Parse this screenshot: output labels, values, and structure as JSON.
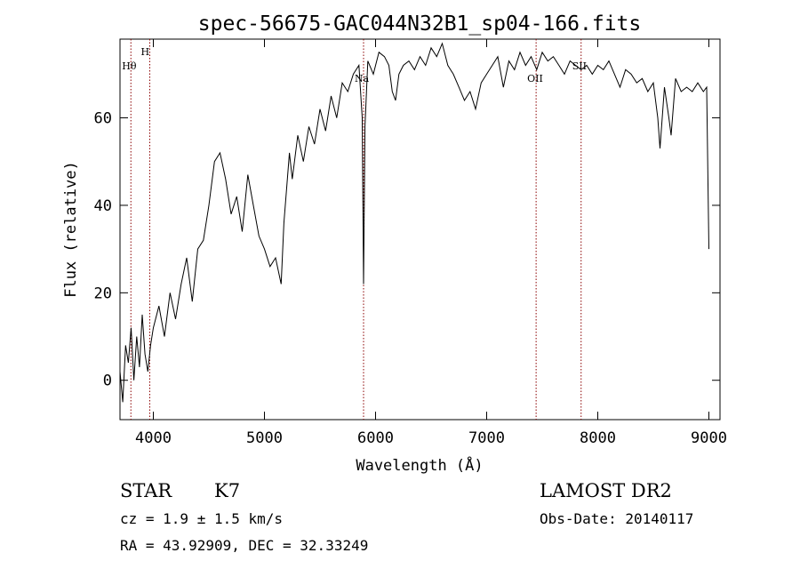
{
  "chart_data": {
    "type": "line",
    "title": "spec-56675-GAC044N32B1_sp04-166.fits",
    "xlabel": "Wavelength (Å)",
    "ylabel": "Flux (relative)",
    "xlim": [
      3700,
      9100
    ],
    "ylim": [
      -9,
      78
    ],
    "xticks": [
      4000,
      5000,
      6000,
      7000,
      8000,
      9000
    ],
    "yticks": [
      0,
      20,
      40,
      60
    ],
    "grid": false,
    "line_color": "#000000",
    "marker_color": "#8b0000",
    "lines": [
      {
        "label": "Hθ",
        "wavelength": 3798
      },
      {
        "label": "H",
        "wavelength": 3968
      },
      {
        "label": "Na",
        "wavelength": 5892
      },
      {
        "label": "OII",
        "wavelength": 7445
      },
      {
        "label": "SII",
        "wavelength": 7850
      }
    ],
    "series": [
      {
        "x": [
          3700,
          3725,
          3750,
          3775,
          3800,
          3825,
          3850,
          3875,
          3900,
          3925,
          3950,
          3975,
          4000,
          4050,
          4100,
          4150,
          4200,
          4250,
          4300,
          4350,
          4400,
          4450,
          4500,
          4550,
          4600,
          4650,
          4700,
          4750,
          4800,
          4850,
          4900,
          4950,
          5000,
          5050,
          5100,
          5150,
          5175,
          5200,
          5225,
          5250,
          5300,
          5350,
          5400,
          5450,
          5500,
          5550,
          5600,
          5650,
          5700,
          5750,
          5800,
          5850,
          5880,
          5892,
          5905,
          5930,
          5980,
          6030,
          6080,
          6120,
          6150,
          6180,
          6210,
          6250,
          6300,
          6350,
          6400,
          6450,
          6500,
          6550,
          6600,
          6650,
          6700,
          6750,
          6800,
          6850,
          6900,
          6950,
          7000,
          7050,
          7100,
          7150,
          7200,
          7250,
          7300,
          7350,
          7400,
          7450,
          7500,
          7550,
          7600,
          7650,
          7700,
          7750,
          7800,
          7850,
          7900,
          7950,
          8000,
          8050,
          8100,
          8150,
          8200,
          8250,
          8300,
          8350,
          8400,
          8450,
          8500,
          8540,
          8560,
          8600,
          8640,
          8660,
          8700,
          8750,
          8800,
          8850,
          8900,
          8950,
          8980,
          9000
        ],
        "y": [
          2,
          -5,
          8,
          4,
          12,
          0,
          10,
          3,
          15,
          6,
          2,
          8,
          12,
          17,
          10,
          20,
          14,
          22,
          28,
          18,
          30,
          32,
          40,
          50,
          52,
          46,
          38,
          42,
          34,
          47,
          40,
          33,
          30,
          26,
          28,
          22,
          36,
          44,
          52,
          46,
          56,
          50,
          58,
          54,
          62,
          57,
          65,
          60,
          68,
          66,
          70,
          72,
          60,
          22,
          58,
          73,
          70,
          75,
          74,
          72,
          66,
          64,
          70,
          72,
          73,
          71,
          74,
          72,
          76,
          74,
          77,
          72,
          70,
          67,
          64,
          66,
          62,
          68,
          70,
          72,
          74,
          67,
          73,
          71,
          75,
          72,
          74,
          71,
          75,
          73,
          74,
          72,
          70,
          73,
          72,
          71,
          72,
          70,
          72,
          71,
          73,
          70,
          67,
          71,
          70,
          68,
          69,
          66,
          68,
          60,
          53,
          67,
          60,
          56,
          69,
          66,
          67,
          66,
          68,
          66,
          67,
          30
        ]
      }
    ]
  },
  "info": {
    "class_type": "STAR",
    "subclass": "K7",
    "survey": "LAMOST DR2",
    "redshift": "cz = 1.9 ± 1.5 km/s",
    "obs_date": "Obs-Date: 20140117",
    "coords": "RA =  43.92909, DEC =  32.33249"
  }
}
